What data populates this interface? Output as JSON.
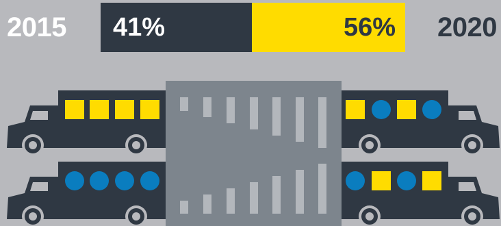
{
  "years": {
    "start": "2015",
    "end": "2020"
  },
  "split": {
    "left_label": "41%",
    "right_label": "56%",
    "left_share": 0.41,
    "right_share": 0.56
  },
  "colors": {
    "background": "#b8b9bd",
    "dark": "#2f3843",
    "yellow": "#ffdc00",
    "blue": "#0a7dbf",
    "tunnel": "#7d858d",
    "stripe": "#b3b7bc"
  },
  "trucks": [
    {
      "side": "left",
      "cargo": [
        "square",
        "square",
        "square",
        "square"
      ]
    },
    {
      "side": "left",
      "cargo": [
        "circle",
        "circle",
        "circle",
        "circle"
      ]
    },
    {
      "side": "right",
      "cargo": [
        "square",
        "circle",
        "square",
        "circle"
      ]
    },
    {
      "side": "right",
      "cargo": [
        "circle",
        "square",
        "circle",
        "square"
      ]
    }
  ]
}
